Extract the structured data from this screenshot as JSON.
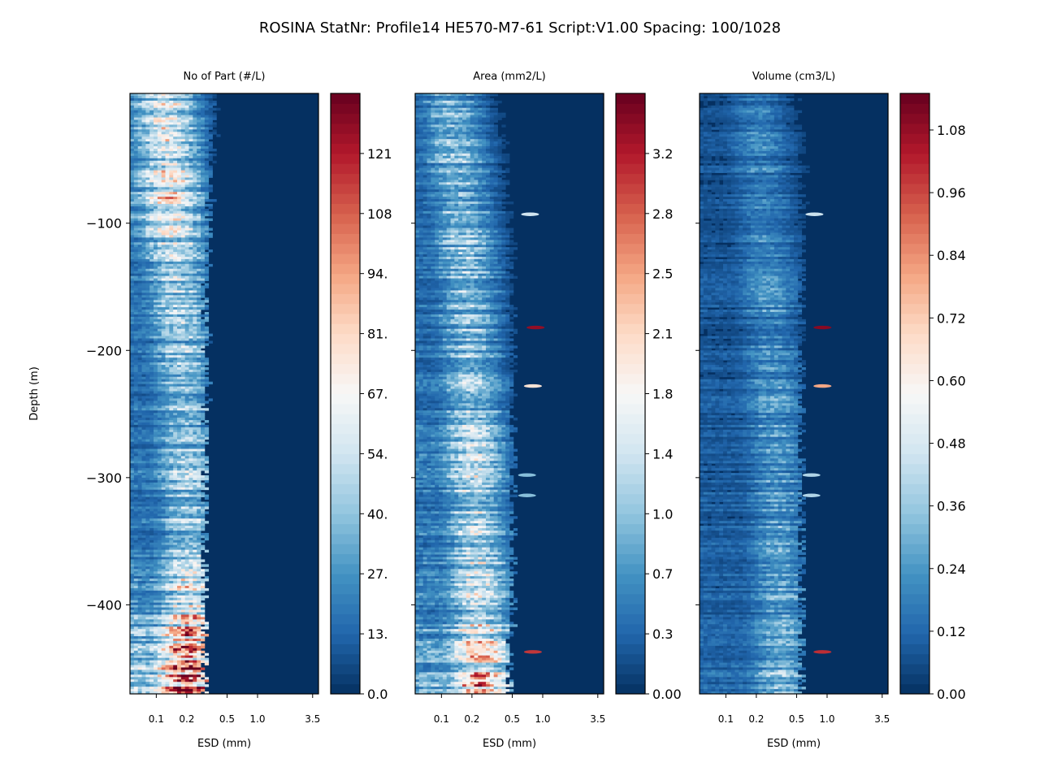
{
  "chart_data": {
    "type": "heatmap",
    "title": "ROSINA StatNr:  Profile14  HE570-M7-61  Script:V1.00  Spacing: 100/1028",
    "ylabel": "Depth (m)",
    "ylim": [
      -470,
      2
    ],
    "y_ticks": [
      -100,
      -200,
      -300,
      -400
    ],
    "y_tick_labels": [
      "−100",
      "−200",
      "−300",
      "−400"
    ],
    "xlabel": "ESD (mm)",
    "x_scale": "log",
    "xlim": [
      0.055,
      4.0
    ],
    "x_ticks": [
      0.1,
      0.2,
      0.5,
      1.0,
      3.5
    ],
    "x_tick_labels": [
      "0.1",
      "0.2",
      "0.5",
      "1.0",
      "3.5"
    ],
    "colormap": "RdBu_r",
    "colormap_stops": [
      "#053061",
      "#2166ac",
      "#4393c3",
      "#92c5de",
      "#d1e5f0",
      "#f7f7f7",
      "#fddbc7",
      "#f4a582",
      "#d6604d",
      "#b2182b",
      "#67001f"
    ],
    "panels": [
      {
        "title": "No of Part (#/L)",
        "colorbar_range": [
          0,
          135
        ],
        "colorbar_ticks": [
          0,
          13.5,
          27,
          40.5,
          54,
          67.5,
          81,
          94.5,
          108,
          121.5
        ],
        "colorbar_tick_labels": [
          "0.0",
          "13.",
          "27.",
          "40.",
          "54.",
          "67.",
          "81.",
          "94.",
          "108",
          "121"
        ],
        "profile": {
          "depth": [
            0,
            -50,
            -100,
            -150,
            -200,
            -250,
            -300,
            -350,
            -400,
            -450,
            -470
          ],
          "peak_esd": [
            0.12,
            0.13,
            0.14,
            0.16,
            0.18,
            0.19,
            0.2,
            0.21,
            0.21,
            0.2,
            0.2
          ],
          "edge_esd": [
            0.35,
            0.32,
            0.3,
            0.28,
            0.28,
            0.28,
            0.27,
            0.27,
            0.27,
            0.27,
            0.27
          ],
          "peak_value": [
            55,
            60,
            60,
            42,
            40,
            40,
            45,
            42,
            65,
            100,
            125
          ]
        }
      },
      {
        "title": "Area (mm2/L)",
        "colorbar_range": [
          0,
          3.5
        ],
        "colorbar_ticks": [
          0,
          0.35,
          0.7,
          1.05,
          1.4,
          1.75,
          2.1,
          2.45,
          2.8,
          3.15
        ],
        "colorbar_tick_labels": [
          "0.00",
          "0.3",
          "0.7",
          "1.0",
          "1.4",
          "1.8",
          "2.1",
          "2.5",
          "2.8",
          "3.2"
        ],
        "profile": {
          "depth": [
            0,
            -50,
            -100,
            -150,
            -200,
            -250,
            -300,
            -350,
            -400,
            -450,
            -470
          ],
          "peak_esd": [
            0.12,
            0.14,
            0.16,
            0.18,
            0.19,
            0.2,
            0.21,
            0.22,
            0.23,
            0.24,
            0.24
          ],
          "edge_esd": [
            0.5,
            0.55,
            0.5,
            0.47,
            0.45,
            0.45,
            0.45,
            0.45,
            0.45,
            0.42,
            0.42
          ],
          "peak_value": [
            0.9,
            1.0,
            1.0,
            1.0,
            1.0,
            1.1,
            1.2,
            1.2,
            1.4,
            1.9,
            2.3
          ]
        },
        "hotspots": [
          {
            "esd": 0.85,
            "depth": -182,
            "value": 3.3
          },
          {
            "esd": 0.8,
            "depth": -228,
            "value": 2.0
          },
          {
            "esd": 0.8,
            "depth": -437,
            "value": 3.0
          },
          {
            "esd": 0.75,
            "depth": -93,
            "value": 1.4
          },
          {
            "esd": 0.7,
            "depth": -298,
            "value": 1.0
          },
          {
            "esd": 0.7,
            "depth": -314,
            "value": 1.0
          }
        ]
      },
      {
        "title": "Volume (cm3/L)",
        "colorbar_range": [
          0,
          1.15
        ],
        "colorbar_ticks": [
          0,
          0.12,
          0.24,
          0.36,
          0.48,
          0.6,
          0.72,
          0.84,
          0.96,
          1.08
        ],
        "colorbar_tick_labels": [
          "0.00",
          "0.12",
          "0.24",
          "0.36",
          "0.48",
          "0.60",
          "0.72",
          "0.84",
          "0.96",
          "1.08"
        ],
        "profile": {
          "depth": [
            0,
            -50,
            -100,
            -150,
            -200,
            -250,
            -300,
            -350,
            -400,
            -450,
            -470
          ],
          "peak_esd": [
            0.2,
            0.22,
            0.24,
            0.26,
            0.28,
            0.3,
            0.32,
            0.33,
            0.34,
            0.35,
            0.35
          ],
          "edge_esd": [
            0.6,
            0.6,
            0.55,
            0.5,
            0.5,
            0.5,
            0.5,
            0.5,
            0.5,
            0.5,
            0.5
          ],
          "peak_value": [
            0.16,
            0.18,
            0.18,
            0.2,
            0.2,
            0.22,
            0.22,
            0.24,
            0.26,
            0.32,
            0.36
          ]
        },
        "hotspots": [
          {
            "esd": 0.9,
            "depth": -182,
            "value": 1.1
          },
          {
            "esd": 0.9,
            "depth": -228,
            "value": 0.8
          },
          {
            "esd": 0.9,
            "depth": -437,
            "value": 1.0
          },
          {
            "esd": 0.75,
            "depth": -93,
            "value": 0.45
          },
          {
            "esd": 0.7,
            "depth": -298,
            "value": 0.4
          },
          {
            "esd": 0.7,
            "depth": -314,
            "value": 0.4
          }
        ]
      }
    ]
  }
}
